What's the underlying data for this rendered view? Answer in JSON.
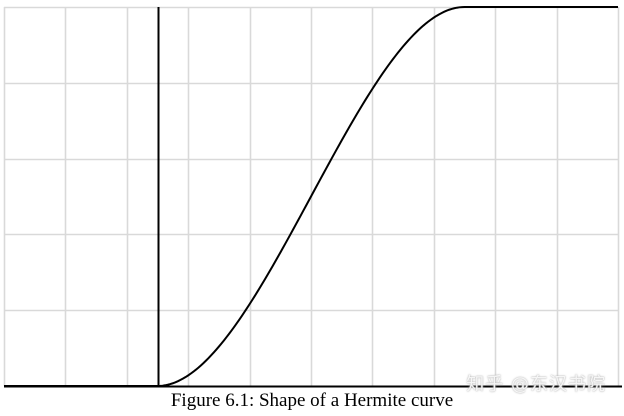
{
  "caption": "Figure 6.1: Shape of a Hermite curve",
  "watermark": "知乎 @东汉书院",
  "colors": {
    "grid": "#d9d9d9",
    "curve": "#000000",
    "axis": "#000000"
  },
  "chart_data": {
    "type": "line",
    "title": "",
    "xlabel": "",
    "ylabel": "",
    "grid": true,
    "xlim": [
      -0.5,
      1.5
    ],
    "ylim": [
      0,
      1
    ],
    "series": [
      {
        "x": [
          -0.5,
          0.0,
          0.1,
          0.2,
          0.3,
          0.4,
          0.5,
          0.6,
          0.7,
          0.8,
          0.9,
          1.0,
          1.5
        ],
        "values": [
          0,
          0,
          0.028,
          0.104,
          0.216,
          0.352,
          0.5,
          0.648,
          0.784,
          0.896,
          0.972,
          1,
          1
        ]
      }
    ]
  }
}
